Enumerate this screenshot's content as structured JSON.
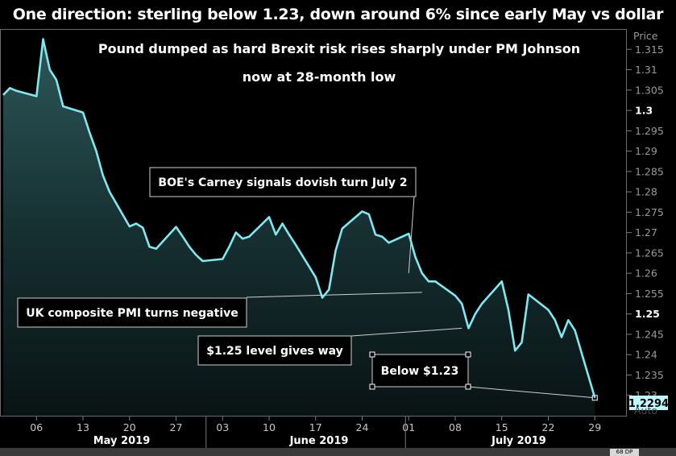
{
  "title": "One direction: sterling below 1.23, down around 6% since early May vs dollar",
  "chart_data": {
    "type": "area",
    "subtitle_lines": [
      "Pound dumped as hard Brexit risk rises sharply under PM Johnson",
      "now at 28-month low"
    ],
    "ylabel": "Price",
    "ylim": [
      1.225,
      1.32
    ],
    "yticks": [
      1.23,
      1.235,
      1.24,
      1.245,
      1.25,
      1.255,
      1.26,
      1.265,
      1.27,
      1.275,
      1.28,
      1.285,
      1.29,
      1.295,
      1.3,
      1.305,
      1.31,
      1.315
    ],
    "ytick_labels": [
      "1.23",
      "1.235",
      "1.24",
      "1.245",
      "1.25",
      "1.255",
      "1.26",
      "1.265",
      "1.27",
      "1.275",
      "1.28",
      "1.285",
      "1.29",
      "1.295",
      "1.3",
      "1.305",
      "1.31",
      "1.315"
    ],
    "bold_ticks": [
      "1.3",
      "1.25"
    ],
    "x_tick_labels": [
      "06",
      "13",
      "20",
      "27",
      "03",
      "10",
      "17",
      "24",
      "01",
      "08",
      "15",
      "22",
      "29"
    ],
    "month_labels": [
      "May 2019",
      "June 2019",
      "July 2019"
    ],
    "last_value_label": "1.2294",
    "auto_label": "Auto",
    "dp_label": "68 DP",
    "series": [
      {
        "color": "#7fe8f0",
        "x": [
          "2019-05-01",
          "2019-05-02",
          "2019-05-03",
          "2019-05-06",
          "2019-05-07",
          "2019-05-08",
          "2019-05-09",
          "2019-05-10",
          "2019-05-13",
          "2019-05-14",
          "2019-05-15",
          "2019-05-16",
          "2019-05-17",
          "2019-05-20",
          "2019-05-21",
          "2019-05-22",
          "2019-05-23",
          "2019-05-24",
          "2019-05-27",
          "2019-05-28",
          "2019-05-29",
          "2019-05-30",
          "2019-05-31",
          "2019-06-03",
          "2019-06-04",
          "2019-06-05",
          "2019-06-06",
          "2019-06-07",
          "2019-06-10",
          "2019-06-11",
          "2019-06-12",
          "2019-06-13",
          "2019-06-14",
          "2019-06-17",
          "2019-06-18",
          "2019-06-19",
          "2019-06-20",
          "2019-06-21",
          "2019-06-24",
          "2019-06-25",
          "2019-06-26",
          "2019-06-27",
          "2019-06-28",
          "2019-07-01",
          "2019-07-02",
          "2019-07-03",
          "2019-07-04",
          "2019-07-05",
          "2019-07-08",
          "2019-07-09",
          "2019-07-10",
          "2019-07-11",
          "2019-07-12",
          "2019-07-15",
          "2019-07-16",
          "2019-07-17",
          "2019-07-18",
          "2019-07-19",
          "2019-07-22",
          "2019-07-23",
          "2019-07-24",
          "2019-07-25",
          "2019-07-26",
          "2019-07-29"
        ],
        "values": [
          1.3038,
          1.3055,
          1.3048,
          1.3035,
          1.3175,
          1.31,
          1.3075,
          1.301,
          1.2995,
          1.2945,
          1.29,
          1.284,
          1.28,
          1.2715,
          1.2722,
          1.2712,
          1.2665,
          1.266,
          1.2714,
          1.269,
          1.2665,
          1.2645,
          1.263,
          1.2635,
          1.2665,
          1.27,
          1.2685,
          1.269,
          1.2738,
          1.2695,
          1.2722,
          1.2695,
          1.267,
          1.259,
          1.254,
          1.256,
          1.2655,
          1.271,
          1.2752,
          1.2745,
          1.2695,
          1.269,
          1.2675,
          1.2697,
          1.264,
          1.26,
          1.258,
          1.258,
          1.2545,
          1.2525,
          1.2465,
          1.25,
          1.2525,
          1.258,
          1.251,
          1.241,
          1.243,
          1.2548,
          1.251,
          1.2485,
          1.2443,
          1.2485,
          1.246,
          1.2294
        ]
      }
    ],
    "annotations": [
      {
        "text": "BOE's Carney signals dovish turn July 2",
        "target_x": "2019-07-01",
        "target_y": 1.26
      },
      {
        "text": "UK composite PMI turns negative",
        "target_x": "2019-07-03",
        "target_y": 1.2553
      },
      {
        "text": "$1.25 level gives way",
        "target_x": "2019-07-09",
        "target_y": 1.2465
      },
      {
        "text": "Below $1.23",
        "target_x": "2019-07-29",
        "target_y": 1.2294
      }
    ]
  }
}
